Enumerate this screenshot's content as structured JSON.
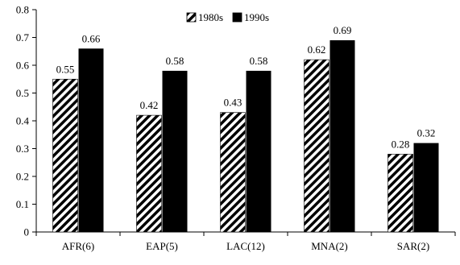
{
  "chart_data": {
    "type": "bar",
    "categories": [
      "AFR(6)",
      "EAP(5)",
      "LAC(12)",
      "MNA(2)",
      "SAR(2)"
    ],
    "series": [
      {
        "name": "1980s",
        "values": [
          0.55,
          0.42,
          0.43,
          0.62,
          0.28
        ],
        "labels": [
          "0.55",
          "0.42",
          "0.43",
          "0.62",
          "0.28"
        ],
        "fill": "hatched"
      },
      {
        "name": "1990s",
        "values": [
          0.66,
          0.58,
          0.58,
          0.69,
          0.32
        ],
        "labels": [
          "0.66",
          "0.58",
          "0.58",
          "0.69",
          "0.32"
        ],
        "fill": "solid"
      }
    ],
    "ylim": [
      0,
      0.8
    ],
    "yticks": [
      "0",
      "0.1",
      "0.2",
      "0.3",
      "0.4",
      "0.5",
      "0.6",
      "0.7",
      "0.8"
    ],
    "ytick_values": [
      0,
      0.1,
      0.2,
      0.3,
      0.4,
      0.5,
      0.6,
      0.7,
      0.8
    ],
    "title": "",
    "xlabel": "",
    "ylabel": "",
    "grid": false,
    "legend_position": "top-center",
    "colors": {
      "bar_solid": "#000000",
      "hatch_stroke": "#000000",
      "hatch_bg": "#ffffff",
      "axis": "#000000"
    }
  }
}
